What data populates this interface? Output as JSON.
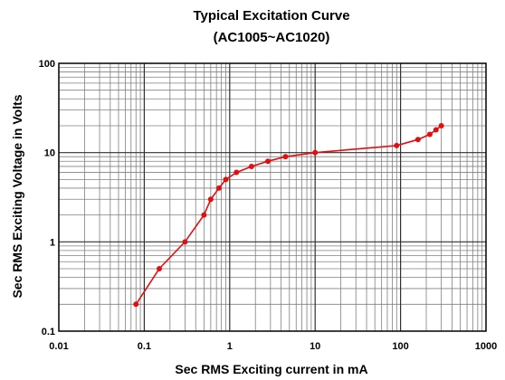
{
  "colors": {
    "series": "#e01010",
    "grid": "#808080",
    "frame": "#000000"
  },
  "chart_data": {
    "type": "line",
    "title": "Typical Excitation Curve",
    "subtitle": "(AC1005~AC1020)",
    "xlabel": "Sec RMS Exciting current in mA",
    "ylabel": "Sec RMS Exciting Voltage in Volts",
    "xscale": "log",
    "yscale": "log",
    "xlim": [
      0.01,
      1000
    ],
    "ylim": [
      0.1,
      100
    ],
    "grid": true,
    "legend": "none",
    "x_ticks": [
      "0.01",
      "0.1",
      "1",
      "10",
      "100",
      "1000"
    ],
    "y_ticks": [
      "0.1",
      "1",
      "10",
      "100"
    ],
    "series": [
      {
        "x": [
          0.08,
          0.15,
          0.3,
          0.5,
          0.6,
          0.75,
          0.9,
          1.2,
          1.8,
          2.8,
          4.5,
          10,
          90,
          160,
          220,
          260,
          300
        ],
        "y": [
          0.2,
          0.5,
          1.0,
          2.0,
          3.0,
          4.0,
          5.0,
          6.0,
          7.0,
          8.0,
          9.0,
          10.0,
          12.0,
          14.0,
          16.0,
          18.0,
          20.0
        ]
      }
    ]
  }
}
